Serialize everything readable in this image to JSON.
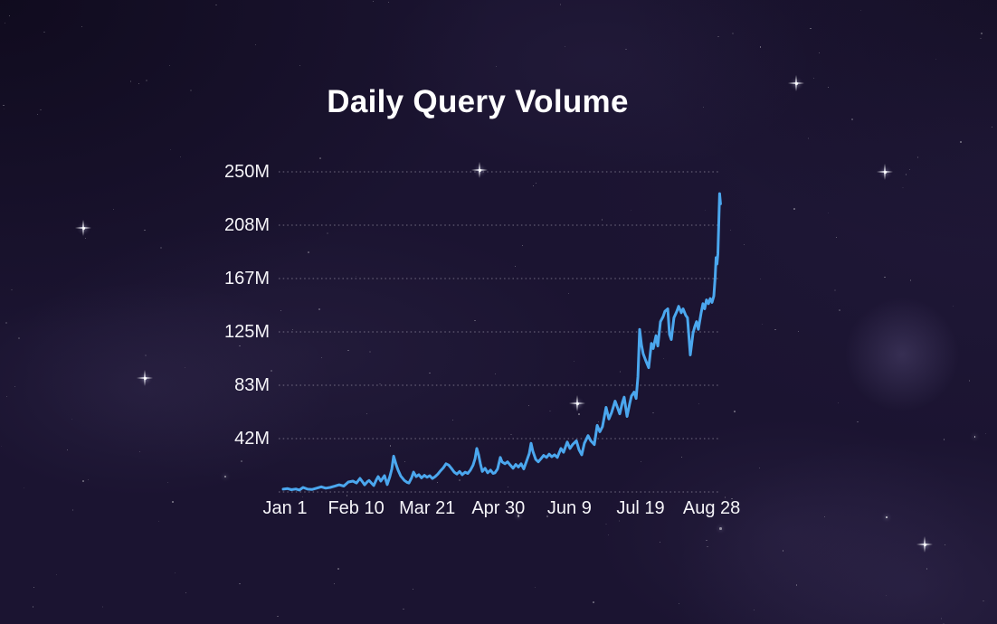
{
  "chart_data": {
    "type": "line",
    "title": "Daily Query Volume",
    "x_axis": {
      "tick_labels": [
        "Jan 1",
        "Feb 10",
        "Mar 21",
        "Apr 30",
        "Jun 9",
        "Jul 19",
        "Aug 28"
      ],
      "tick_days": [
        0,
        40,
        80,
        120,
        160,
        200,
        240
      ],
      "range_days": [
        -1,
        245
      ]
    },
    "y_axis": {
      "tick_labels": [
        "250M",
        "208M",
        "167M",
        "125M",
        "83M",
        "42M"
      ],
      "tick_values": [
        250,
        208.33,
        166.67,
        125,
        83.33,
        41.67
      ],
      "baseline_value": 0,
      "unit": "millions of queries per day",
      "ylim": [
        0,
        250
      ]
    },
    "grid": {
      "orientation": "horizontal",
      "style": "dotted",
      "color": "rgba(235,232,244,0.42)"
    },
    "legend": "none",
    "colors": {
      "line": "#4BA7EE",
      "background": "#1B1431",
      "text": "#FFFFFF"
    },
    "series": [
      {
        "name": "daily_query_volume",
        "unit": "M",
        "points": [
          [
            -1,
            2.2
          ],
          [
            1.5,
            2.6
          ],
          [
            3.6,
            1.8
          ],
          [
            6.1,
            2.3
          ],
          [
            8.1,
            1.5
          ],
          [
            10.2,
            3.5
          ],
          [
            12.7,
            2.2
          ],
          [
            15.3,
            2.0
          ],
          [
            17.8,
            3.0
          ],
          [
            20.4,
            4.0
          ],
          [
            22.9,
            3.0
          ],
          [
            25.4,
            3.5
          ],
          [
            28,
            4.5
          ],
          [
            30.5,
            5.6
          ],
          [
            33.1,
            4.6
          ],
          [
            35.6,
            7.8
          ],
          [
            38.2,
            8.5
          ],
          [
            40.2,
            7.0
          ],
          [
            42.2,
            10.6
          ],
          [
            43.8,
            7.5
          ],
          [
            44.8,
            5.6
          ],
          [
            46.3,
            8.0
          ],
          [
            47.3,
            9.0
          ],
          [
            48.9,
            6.5
          ],
          [
            49.9,
            5.0
          ],
          [
            51.4,
            9.5
          ],
          [
            52.4,
            12.0
          ],
          [
            53.9,
            8.5
          ],
          [
            56,
            12.7
          ],
          [
            57.5,
            5.8
          ],
          [
            59,
            12.0
          ],
          [
            60.1,
            18.0
          ],
          [
            61.1,
            28.0
          ],
          [
            62.6,
            21.0
          ],
          [
            63.6,
            17.0
          ],
          [
            65.1,
            12.5
          ],
          [
            67.2,
            9.0
          ],
          [
            68.7,
            7.5
          ],
          [
            69.7,
            7.0
          ],
          [
            71.2,
            11.0
          ],
          [
            72.3,
            15.5
          ],
          [
            73.8,
            12.0
          ],
          [
            75.3,
            13.5
          ],
          [
            76.8,
            11.0
          ],
          [
            78.4,
            13.0
          ],
          [
            79.9,
            11.5
          ],
          [
            81.4,
            12.7
          ],
          [
            82.9,
            10.5
          ],
          [
            84.5,
            12.0
          ],
          [
            86,
            14.0
          ],
          [
            87.5,
            16.5
          ],
          [
            89.1,
            19.0
          ],
          [
            90.6,
            22.0
          ],
          [
            92.1,
            21.0
          ],
          [
            93.6,
            18.5
          ],
          [
            95.2,
            15.5
          ],
          [
            96.7,
            14.0
          ],
          [
            98.2,
            16.0
          ],
          [
            99.7,
            13.5
          ],
          [
            101.3,
            15.5
          ],
          [
            102.8,
            14.5
          ],
          [
            104.3,
            17.0
          ],
          [
            105.8,
            21.0
          ],
          [
            106.9,
            26.0
          ],
          [
            107.9,
            34.0
          ],
          [
            108.9,
            29.0
          ],
          [
            109.9,
            22.0
          ],
          [
            111,
            16.0
          ],
          [
            112.5,
            18.5
          ],
          [
            114,
            15.0
          ],
          [
            115.6,
            17.0
          ],
          [
            117.1,
            14.5
          ],
          [
            118.1,
            15.0
          ],
          [
            119.6,
            18.0
          ],
          [
            121.1,
            27.0
          ],
          [
            122.1,
            23.5
          ],
          [
            123.7,
            22.0
          ],
          [
            125.2,
            23.5
          ],
          [
            126.7,
            21.0
          ],
          [
            128.3,
            18.5
          ],
          [
            129.8,
            21.5
          ],
          [
            131.3,
            19.5
          ],
          [
            132.8,
            22.0
          ],
          [
            134.3,
            18.0
          ],
          [
            135.9,
            24.0
          ],
          [
            137.4,
            30.0
          ],
          [
            138.4,
            38.0
          ],
          [
            139.4,
            32.0
          ],
          [
            141,
            25.5
          ],
          [
            142.5,
            23.5
          ],
          [
            144,
            26.0
          ],
          [
            145.5,
            28.5
          ],
          [
            147.1,
            27.0
          ],
          [
            148.6,
            29.5
          ],
          [
            150.1,
            27.5
          ],
          [
            151.6,
            29.0
          ],
          [
            153.2,
            27.0
          ],
          [
            155.2,
            34.0
          ],
          [
            156.7,
            31.0
          ],
          [
            158.8,
            39.0
          ],
          [
            160.3,
            34.0
          ],
          [
            161.8,
            37.0
          ],
          [
            163.9,
            40.0
          ],
          [
            165.4,
            33.0
          ],
          [
            166.9,
            29.0
          ],
          [
            168.4,
            38.0
          ],
          [
            170.5,
            44.0
          ],
          [
            172,
            40.0
          ],
          [
            174,
            37.0
          ],
          [
            175.6,
            52.0
          ],
          [
            177.1,
            47.0
          ],
          [
            178.6,
            51.0
          ],
          [
            180.6,
            66.0
          ],
          [
            182.2,
            57.0
          ],
          [
            183.7,
            62.0
          ],
          [
            185.7,
            71.0
          ],
          [
            187.3,
            65.0
          ],
          [
            188.3,
            61.0
          ],
          [
            189.8,
            70.0
          ],
          [
            190.8,
            74.0
          ],
          [
            192.4,
            59.0
          ],
          [
            193.9,
            69.0
          ],
          [
            194.9,
            75.0
          ],
          [
            196.4,
            78.0
          ],
          [
            197.5,
            73.0
          ],
          [
            198.5,
            90.0
          ],
          [
            199.5,
            127.0
          ],
          [
            200.5,
            115.0
          ],
          [
            201.5,
            108.0
          ],
          [
            203.1,
            102.0
          ],
          [
            204.6,
            97.0
          ],
          [
            206.1,
            116.0
          ],
          [
            207.1,
            112.0
          ],
          [
            208.7,
            122.0
          ],
          [
            209.7,
            114.0
          ],
          [
            211.2,
            133.0
          ],
          [
            212.7,
            137.0
          ],
          [
            213.7,
            141.0
          ],
          [
            215.3,
            143.0
          ],
          [
            216.3,
            123.0
          ],
          [
            217.3,
            119.0
          ],
          [
            218.8,
            136.0
          ],
          [
            220.4,
            141.0
          ],
          [
            221.4,
            145.0
          ],
          [
            222.9,
            140.0
          ],
          [
            223.9,
            143.0
          ],
          [
            225.4,
            138.0
          ],
          [
            226.4,
            136.0
          ],
          [
            228,
            107.0
          ],
          [
            229.5,
            124.0
          ],
          [
            230.5,
            129.0
          ],
          [
            231.5,
            133.0
          ],
          [
            232.5,
            127.0
          ],
          [
            234.1,
            140.0
          ],
          [
            235.1,
            147.0
          ],
          [
            236.1,
            143.0
          ],
          [
            237.1,
            150.0
          ],
          [
            238.2,
            147.0
          ],
          [
            239.2,
            151.0
          ],
          [
            240.2,
            148.0
          ],
          [
            241.2,
            153.0
          ],
          [
            242,
            168.0
          ],
          [
            242.5,
            183.0
          ],
          [
            243,
            178.0
          ],
          [
            243.5,
            186.0
          ],
          [
            244.5,
            233.0
          ],
          [
            245,
            225.0
          ]
        ]
      }
    ]
  }
}
